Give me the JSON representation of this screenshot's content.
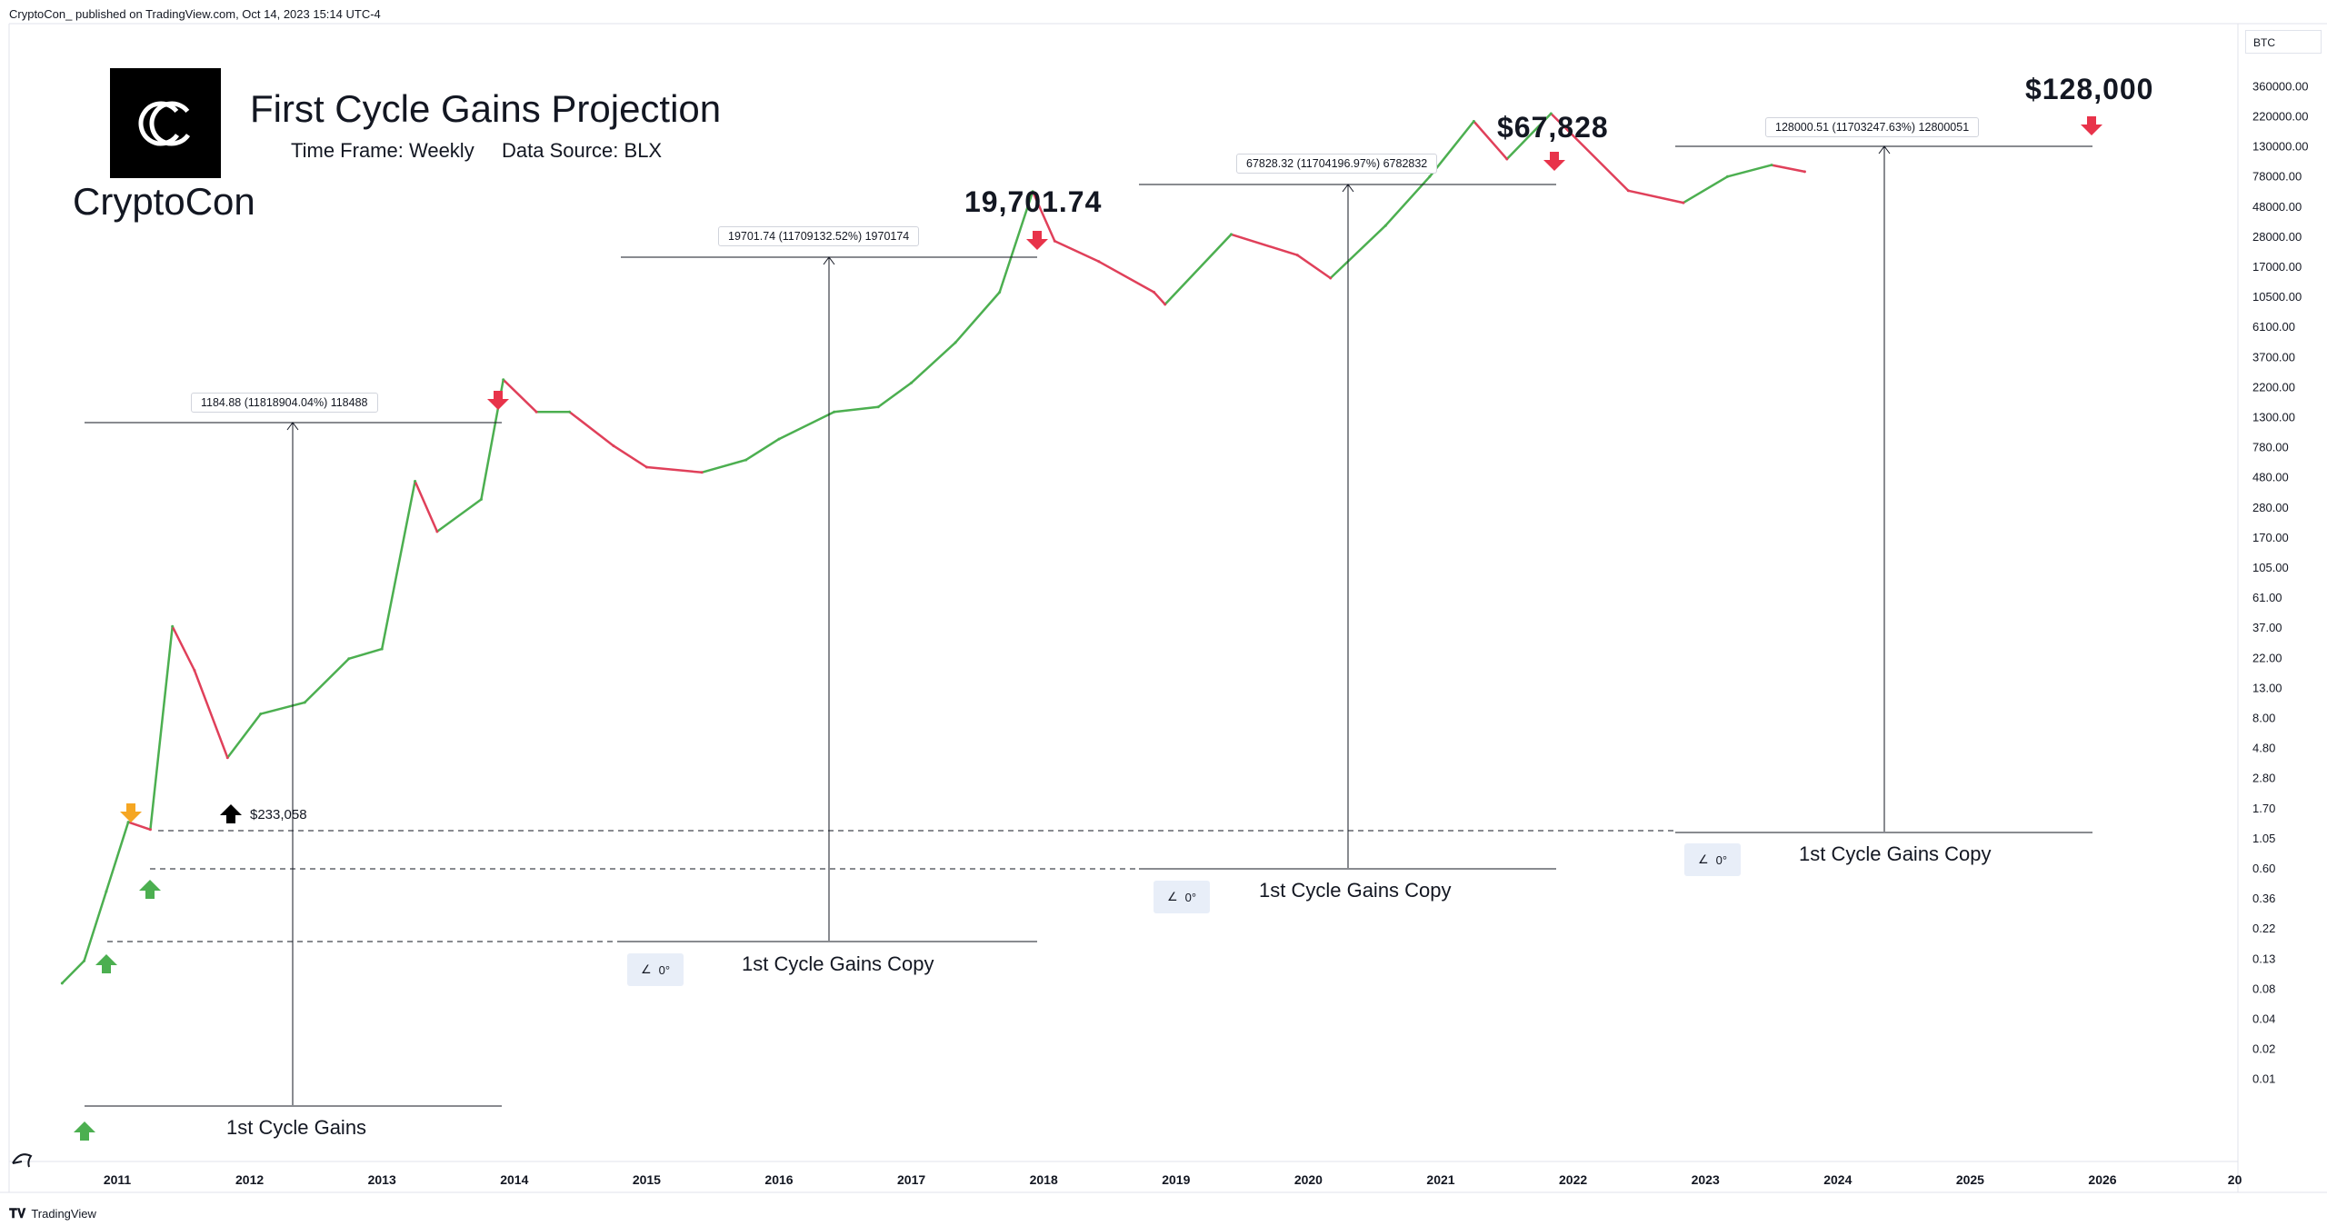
{
  "publisher": "CryptoCon_ published on TradingView.com, Oct 14, 2023 15:14 UTC-4",
  "footer": {
    "brand": "TradingView"
  },
  "logo": {
    "text": "CryptoCon",
    "icon": "cryptocon-logo-icon"
  },
  "header": {
    "title": "First Cycle Gains Projection",
    "timeframe": "Time Frame: Weekly",
    "datasource": "Data Source: BLX"
  },
  "currency": "BTC",
  "colors": {
    "up": "#4caf50",
    "down": "#e0405a",
    "arrow_red": "#e8334a",
    "arrow_green": "#4caf50",
    "arrow_orange": "#f5a623",
    "arrow_black": "#000000",
    "angle_bg": "#e8eef8"
  },
  "annotations": {
    "peak_2018": "19,701.74",
    "peak_2021": "$67,828",
    "projection": "$128,000",
    "low_2011": "$233,058",
    "measure_1": "1184.88 (11818904.04%) 118488",
    "measure_2": "19701.74 (11709132.52%) 1970174",
    "measure_3": "67828.32 (11704196.97%) 6782832",
    "measure_4": "128000.51 (11703247.63%) 12800051",
    "gains_1": "1st Cycle Gains",
    "gains_2": "1st Cycle Gains Copy",
    "gains_3": "1st Cycle Gains Copy",
    "gains_4": "1st Cycle Gains Copy",
    "angle": "0°"
  },
  "chart_data": {
    "type": "line",
    "title": "First Cycle Gains Projection",
    "series": [
      {
        "name": "BTC",
        "x": [
          "2010-08",
          "2010-10",
          "2010-12",
          "2011-02",
          "2011-04",
          "2011-06",
          "2011-08",
          "2011-11",
          "2012-02",
          "2012-06",
          "2012-10",
          "2013-01",
          "2013-04",
          "2013-06",
          "2013-10",
          "2013-12",
          "2014-03",
          "2014-06",
          "2014-10",
          "2015-01",
          "2015-06",
          "2015-10",
          "2016-01",
          "2016-06",
          "2016-10",
          "2017-01",
          "2017-05",
          "2017-09",
          "2017-12",
          "2018-02",
          "2018-06",
          "2018-11",
          "2018-12",
          "2019-06",
          "2019-12",
          "2020-03",
          "2020-08",
          "2020-12",
          "2021-04",
          "2021-07",
          "2021-11",
          "2022-06",
          "2022-11",
          "2023-03",
          "2023-07",
          "2023-10"
        ],
        "values": [
          0.07,
          0.1,
          0.3,
          0.9,
          0.8,
          20,
          10,
          2.5,
          5,
          6,
          12,
          14,
          200,
          90,
          150,
          1000,
          600,
          600,
          350,
          250,
          230,
          280,
          390,
          600,
          650,
          950,
          1800,
          4000,
          19700,
          9000,
          6500,
          4000,
          3300,
          10000,
          7200,
          5000,
          11500,
          25000,
          60000,
          33000,
          67828,
          20000,
          16500,
          25000,
          30000,
          27000
        ]
      }
    ],
    "x_ticks": [
      "2011",
      "2012",
      "2013",
      "2014",
      "2015",
      "2016",
      "2017",
      "2018",
      "2019",
      "2020",
      "2021",
      "2022",
      "2023",
      "2024",
      "2025",
      "2026",
      "20"
    ],
    "y_ticks": [
      "360000.00",
      "220000.00",
      "130000.00",
      "78000.00",
      "48000.00",
      "28000.00",
      "17000.00",
      "10500.00",
      "6100.00",
      "3700.00",
      "2200.00",
      "1300.00",
      "780.00",
      "480.00",
      "280.00",
      "170.00",
      "105.00",
      "61.00",
      "37.00",
      "22.00",
      "13.00",
      "8.00",
      "4.80",
      "2.80",
      "1.70",
      "1.05",
      "0.60",
      "0.36",
      "0.22",
      "0.13",
      "0.08",
      "0.04",
      "0.02",
      "0.01"
    ],
    "y_scale": "log",
    "grid": false,
    "legend": "none"
  }
}
